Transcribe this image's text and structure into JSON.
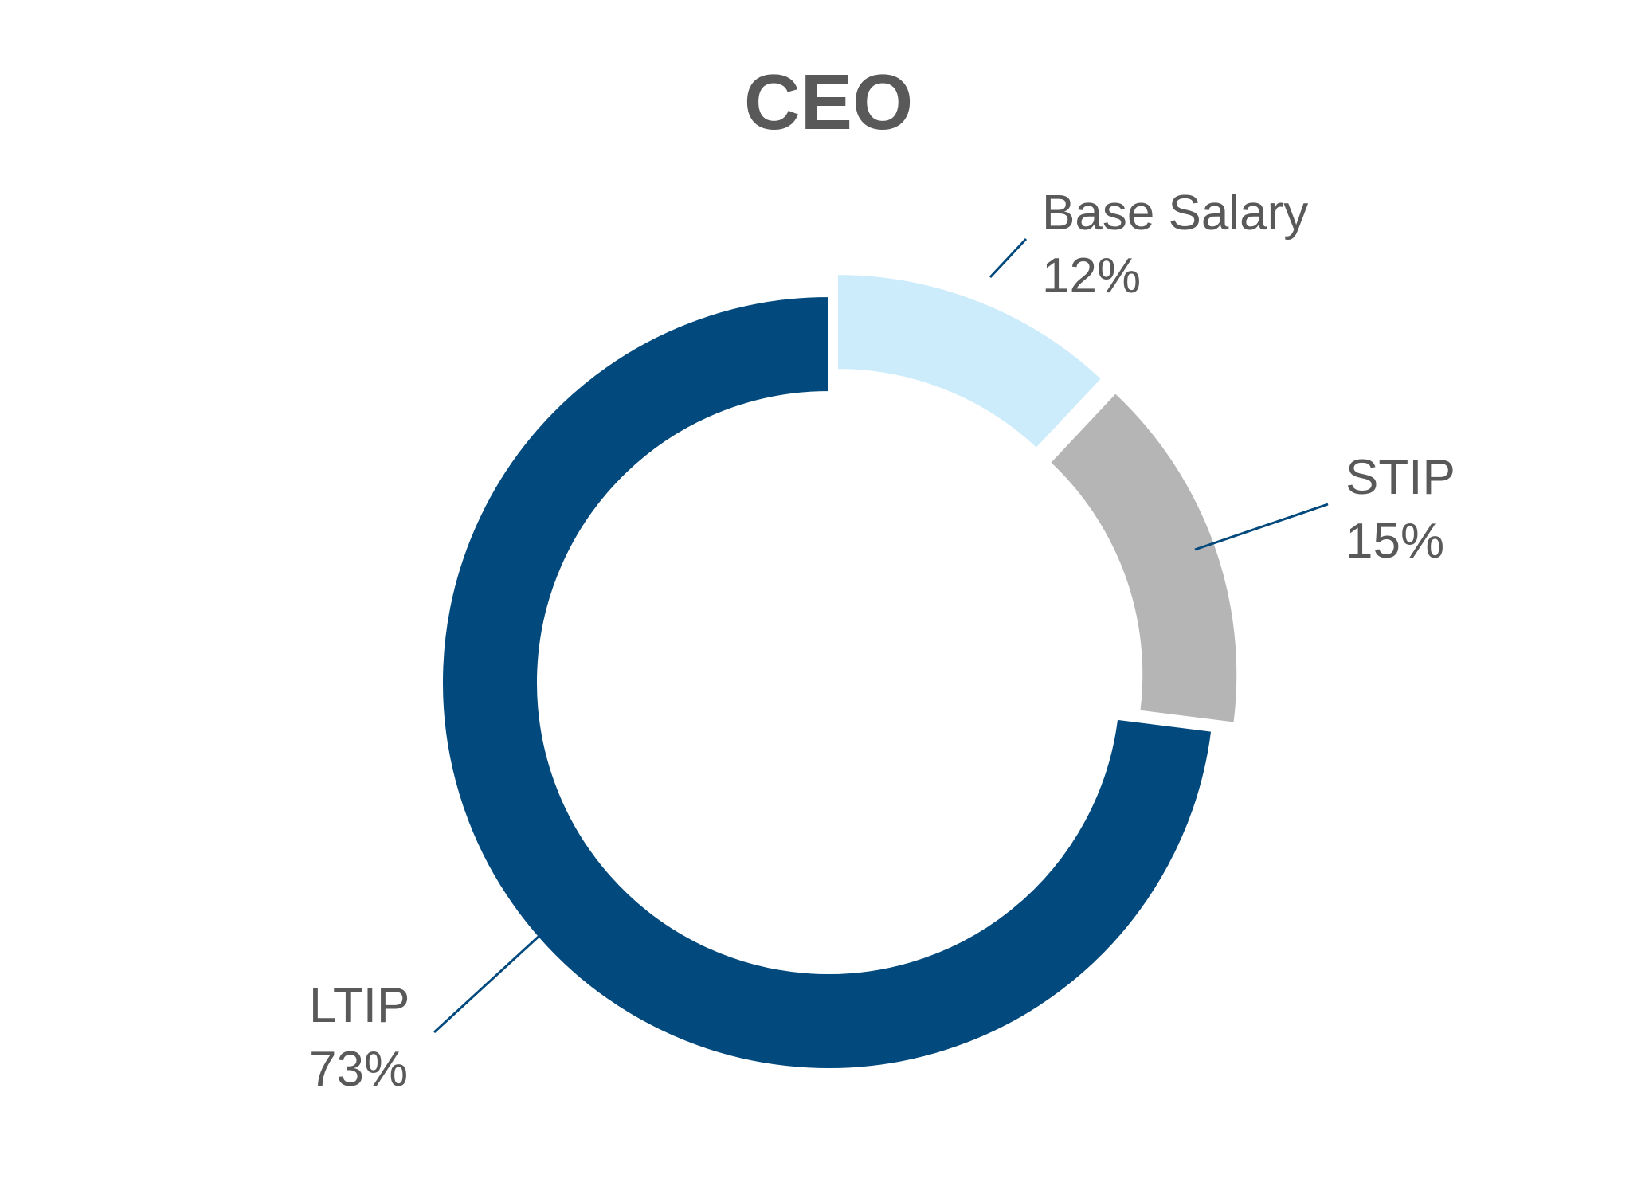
{
  "chart_data": {
    "type": "pie",
    "donut": true,
    "title": "CEO",
    "slices": [
      {
        "label": "Base Salary",
        "value": 12,
        "value_label": "12%",
        "color": "#CCECFC",
        "exploded": true
      },
      {
        "label": "STIP",
        "value": 15,
        "value_label": "15%",
        "color": "#B5B5B5",
        "exploded": true
      },
      {
        "label": "LTIP",
        "value": 73,
        "value_label": "73%",
        "color": "#02497D",
        "exploded": false
      }
    ],
    "leader_line_color": "#02497D",
    "text_color": "#595959"
  }
}
